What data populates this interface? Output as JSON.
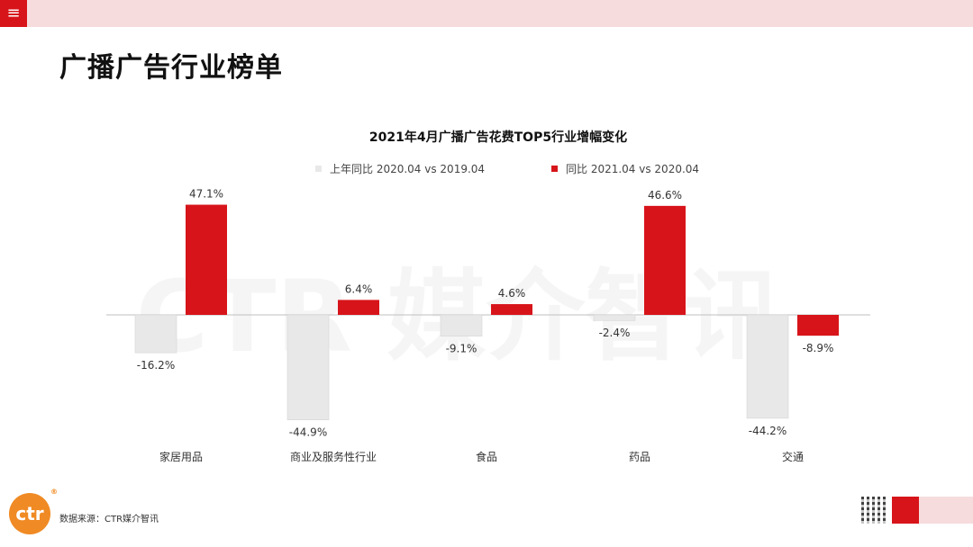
{
  "page": {
    "title": "广播广告行业榜单",
    "menu_icon": "≡",
    "source": "数据来源：CTR媒介智讯",
    "logo_text": "ctr",
    "logo_reg": "®",
    "watermark": "CTR 媒介智讯"
  },
  "colors": {
    "accent": "#d7141a",
    "light_series": "#e8e8e8",
    "top_bar": "#f6dcdd",
    "logo": "#f08a24"
  },
  "chart_data": {
    "type": "bar",
    "title": "2021年4月广播广告花费TOP5行业增幅变化",
    "categories": [
      "家居用品",
      "商业及服务性行业",
      "食品",
      "药品",
      "交通"
    ],
    "series": [
      {
        "name": "上年同比 2020.04 vs 2019.04",
        "color": "#e8e8e8",
        "values": [
          -16.2,
          -44.9,
          -9.1,
          -2.4,
          -44.2
        ],
        "labels": [
          "-16.2%",
          "-44.9%",
          "-9.1%",
          "-2.4%",
          "-44.2%"
        ]
      },
      {
        "name": "同比 2021.04 vs 2020.04",
        "color": "#d7141a",
        "values": [
          47.1,
          6.4,
          4.6,
          46.6,
          -8.9
        ],
        "labels": [
          "47.1%",
          "6.4%",
          "4.6%",
          "46.6%",
          "-8.9%"
        ]
      }
    ],
    "ylim": [
      -50,
      50
    ],
    "grid": false,
    "legend_position": "top"
  }
}
